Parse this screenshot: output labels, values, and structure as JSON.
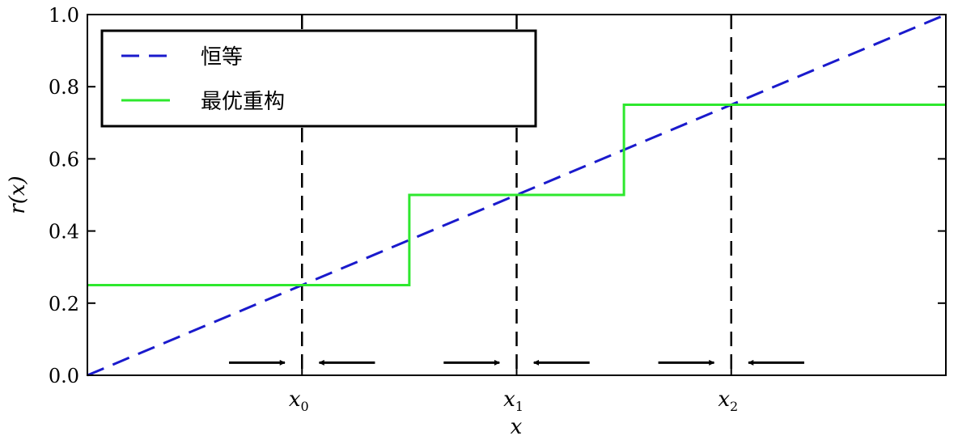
{
  "chart_data": {
    "type": "line",
    "xlabel": "x",
    "ylabel": "r(x)",
    "xlim": [
      0,
      1
    ],
    "ylim": [
      0,
      1
    ],
    "yticks": [
      "0.0",
      "0.2",
      "0.4",
      "0.6",
      "0.8",
      "1.0"
    ],
    "xtick_labels": [
      {
        "x": 0.25,
        "base": "x",
        "sub": "0"
      },
      {
        "x": 0.5,
        "base": "x",
        "sub": "1"
      },
      {
        "x": 0.75,
        "base": "x",
        "sub": "2"
      }
    ],
    "series": [
      {
        "name": "恒等",
        "color": "#1a1acc",
        "style": "dashed",
        "points": [
          [
            0,
            0
          ],
          [
            1,
            1
          ]
        ]
      },
      {
        "name": "最优重构",
        "color": "#2ee82e",
        "style": "solid",
        "points": [
          [
            0,
            0.25
          ],
          [
            0.375,
            0.25
          ],
          [
            0.375,
            0.5
          ],
          [
            0.625,
            0.5
          ],
          [
            0.625,
            0.75
          ],
          [
            1,
            0.75
          ]
        ]
      }
    ],
    "vlines": [
      0.25,
      0.5,
      0.75
    ],
    "arrows": [
      {
        "from": 0.165,
        "to": 0.23
      },
      {
        "from": 0.335,
        "to": 0.27
      },
      {
        "from": 0.415,
        "to": 0.48
      },
      {
        "from": 0.585,
        "to": 0.52
      },
      {
        "from": 0.665,
        "to": 0.73
      },
      {
        "from": 0.835,
        "to": 0.77
      }
    ],
    "arrow_y": 0.035,
    "legend": {
      "placement": "top-left",
      "entries": [
        "恒等",
        "最优重构"
      ]
    },
    "grid": false
  }
}
